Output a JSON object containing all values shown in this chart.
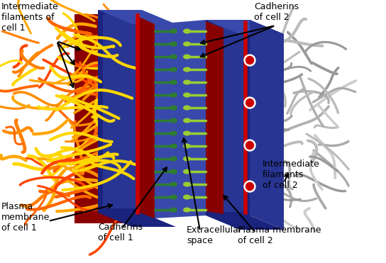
{
  "bg_color": "#ffffff",
  "font_size": 9,
  "arrow_color": "#000000",
  "colors": {
    "cell1_bg_dark": "#8B0000",
    "cell1_membrane_outer": "#1a237e",
    "cell1_membrane_inner": "#283593",
    "cell2_membrane_outer": "#1a237e",
    "cell2_membrane_inner": "#283593",
    "extracellular": "#3949ab",
    "filament_orange": "#FF8C00",
    "filament_red": "#CC2200",
    "filament_yellow": "#FFD700",
    "filament_gray": "#AAAAAA",
    "cadherin_green": "#2E7D32",
    "cadherin_yellow_green": "#9ACD32",
    "red_border": "#CC0000",
    "top_face": "#3949ab",
    "bot_face": "#1a237e",
    "right_face": "#283593",
    "plaque": "#880000"
  },
  "labels": {
    "intermediate_filaments_cell1": "Intermediate\nfilaments of\ncell 1",
    "intermediate_filaments_cell2": "Intermediate\nfilaments\nof cell 2",
    "cadherins_cell1": "Cadherins\nof cell 1",
    "cadherins_cell2": "Cadherins\nof cell 2",
    "plasma_membrane_cell1": "Plasma\nmembrane\nof cell 1",
    "plasma_membrane_cell2": "Plasma membrane\nof cell 2",
    "extracellular_space": "Extracellular\nspace"
  }
}
